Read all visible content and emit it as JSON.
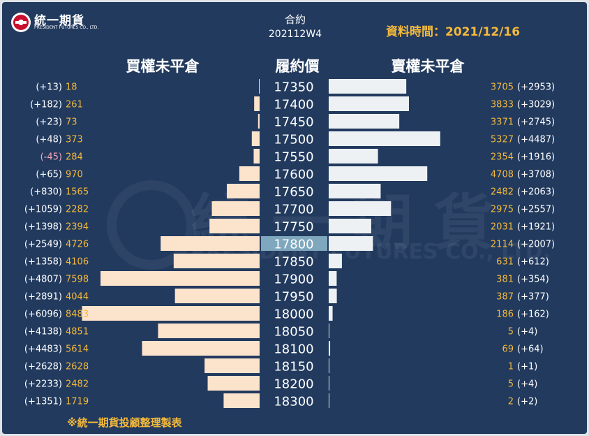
{
  "logo": {
    "name": "統一期貨",
    "subtitle": "PRESIDENT FUTURES CO., LTD."
  },
  "header": {
    "contract_label": "合約",
    "contract_code": "202112W4",
    "data_time": "資料時間：2021/12/16",
    "call_title": "買權未平倉",
    "strike_title": "履約價",
    "put_title": "賣權未平倉"
  },
  "footer": {
    "note": "※統一期貨投顧整理製表"
  },
  "colors": {
    "background": "#223a5e",
    "call_bar": "#fbe3cc",
    "put_bar": "#eef1f4",
    "value_text": "#f4b93b",
    "change_text": "#ffffff",
    "negative_change": "#f2a6b8",
    "highlight_strike": "#7fa7bd"
  },
  "chart_data": {
    "type": "bar",
    "orientation": "horizontal",
    "highlight_strike": "17800",
    "strikes": [
      "17350",
      "17400",
      "17450",
      "17500",
      "17550",
      "17600",
      "17650",
      "17700",
      "17750",
      "17800",
      "17850",
      "17900",
      "17950",
      "18000",
      "18050",
      "18100",
      "18150",
      "18200",
      "18300"
    ],
    "series": [
      {
        "name": "買權未平倉",
        "values": [
          18,
          261,
          73,
          373,
          284,
          970,
          1565,
          2282,
          2394,
          4726,
          4106,
          7598,
          4044,
          8483,
          4851,
          5614,
          2628,
          2482,
          1719
        ],
        "changes": [
          "(+13)",
          "(+182)",
          "(+23)",
          "(+48)",
          "(-45)",
          "(+65)",
          "(+830)",
          "(+1059)",
          "(+1398)",
          "(+2549)",
          "(+1358)",
          "(+4807)",
          "(+2891)",
          "(+6096)",
          "(+4138)",
          "(+4483)",
          "(+2628)",
          "(+2233)",
          "(+1351)"
        ]
      },
      {
        "name": "賣權未平倉",
        "values": [
          3705,
          3833,
          3371,
          5327,
          2354,
          4708,
          2482,
          2975,
          2031,
          2114,
          631,
          381,
          387,
          186,
          5,
          69,
          1,
          5,
          2
        ],
        "changes": [
          "(+2953)",
          "(+3029)",
          "(+2745)",
          "(+4487)",
          "(+1916)",
          "(+3708)",
          "(+2063)",
          "(+2557)",
          "(+1921)",
          "(+2007)",
          "(+612)",
          "(+354)",
          "(+377)",
          "(+162)",
          "(+4)",
          "(+64)",
          "(+1)",
          "(+4)",
          "(+2)"
        ]
      }
    ],
    "xlim": [
      0,
      8500
    ]
  }
}
